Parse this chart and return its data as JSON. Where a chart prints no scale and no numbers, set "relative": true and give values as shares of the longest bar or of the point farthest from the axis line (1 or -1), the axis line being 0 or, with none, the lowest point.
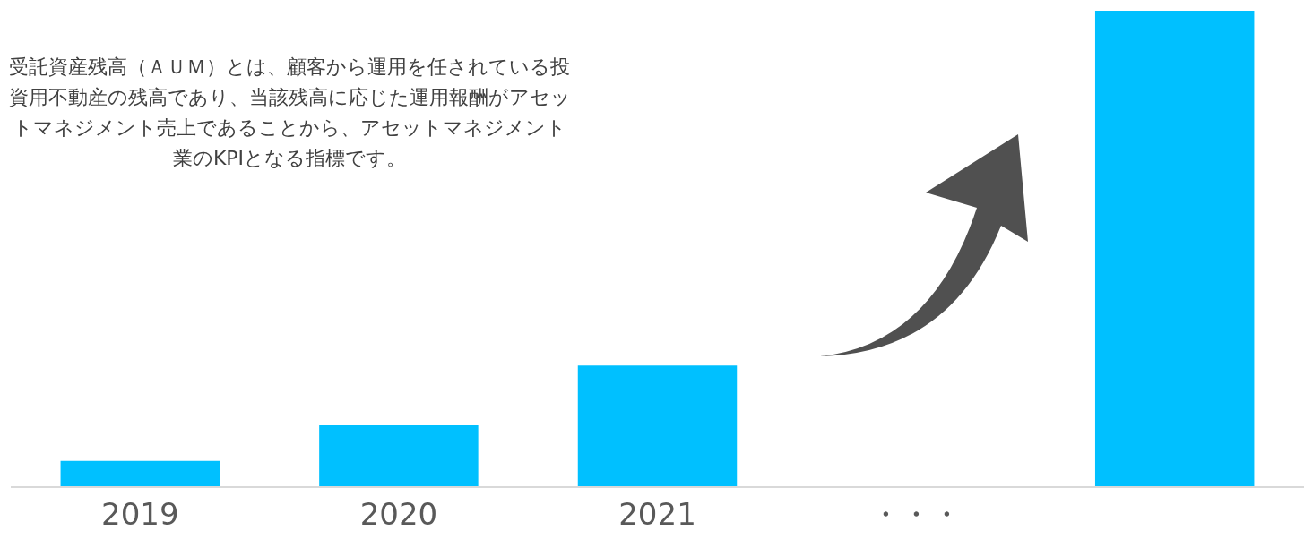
{
  "chart_data": {
    "type": "bar",
    "relative": true,
    "categories": [
      "2019",
      "2020",
      "2021",
      "・・・",
      null
    ],
    "values": [
      0.053,
      0.128,
      0.254,
      null,
      1
    ],
    "color": "#00c0ff",
    "grid": false,
    "annotations": [
      "受託資産残高（ＡＵＭ）とは、顧客から運用を任されている投資用不動産の残高であり、当該残高に応じた運用報酬がアセットマネジメント売上であることから、アセットマネジメント業のKPIとなる指標です。"
    ]
  }
}
